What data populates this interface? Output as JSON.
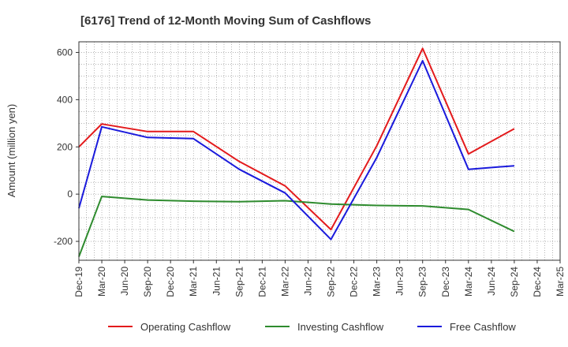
{
  "chart_data": {
    "type": "line",
    "title": "[6176]  Trend of 12-Month Moving Sum of Cashflows",
    "ylabel": "Amount (million yen)",
    "xlabel": "",
    "ylim": [
      -280,
      645
    ],
    "yticks": [
      -200,
      0,
      200,
      400,
      600
    ],
    "grid": true,
    "legend_position": "bottom",
    "categories": [
      "Dec-19",
      "Mar-20",
      "Jun-20",
      "Sep-20",
      "Dec-20",
      "Mar-21",
      "Jun-21",
      "Sep-21",
      "Dec-21",
      "Mar-22",
      "Jun-22",
      "Sep-22",
      "Dec-22",
      "Mar-23",
      "Jun-23",
      "Sep-23",
      "Dec-23",
      "Mar-24",
      "Jun-24",
      "Sep-24",
      "Dec-24",
      "Mar-25"
    ],
    "series": [
      {
        "name": "Operating Cashflow",
        "color": "#e31a1c",
        "values": [
          200,
          297,
          null,
          265,
          null,
          265,
          null,
          138,
          null,
          35,
          null,
          -150,
          null,
          205,
          null,
          617,
          null,
          170,
          null,
          277,
          null,
          null
        ]
      },
      {
        "name": "Investing Cashflow",
        "color": "#2e8b2e",
        "values": [
          -265,
          -10,
          null,
          -25,
          null,
          -30,
          null,
          -32,
          null,
          -28,
          null,
          -42,
          null,
          -48,
          null,
          -50,
          null,
          -65,
          null,
          -158,
          null,
          null
        ]
      },
      {
        "name": "Free Cashflow",
        "color": "#1a1adc",
        "values": [
          -60,
          285,
          null,
          240,
          null,
          235,
          null,
          105,
          null,
          5,
          null,
          -192,
          null,
          155,
          null,
          565,
          null,
          105,
          null,
          120,
          null,
          null
        ]
      }
    ]
  }
}
